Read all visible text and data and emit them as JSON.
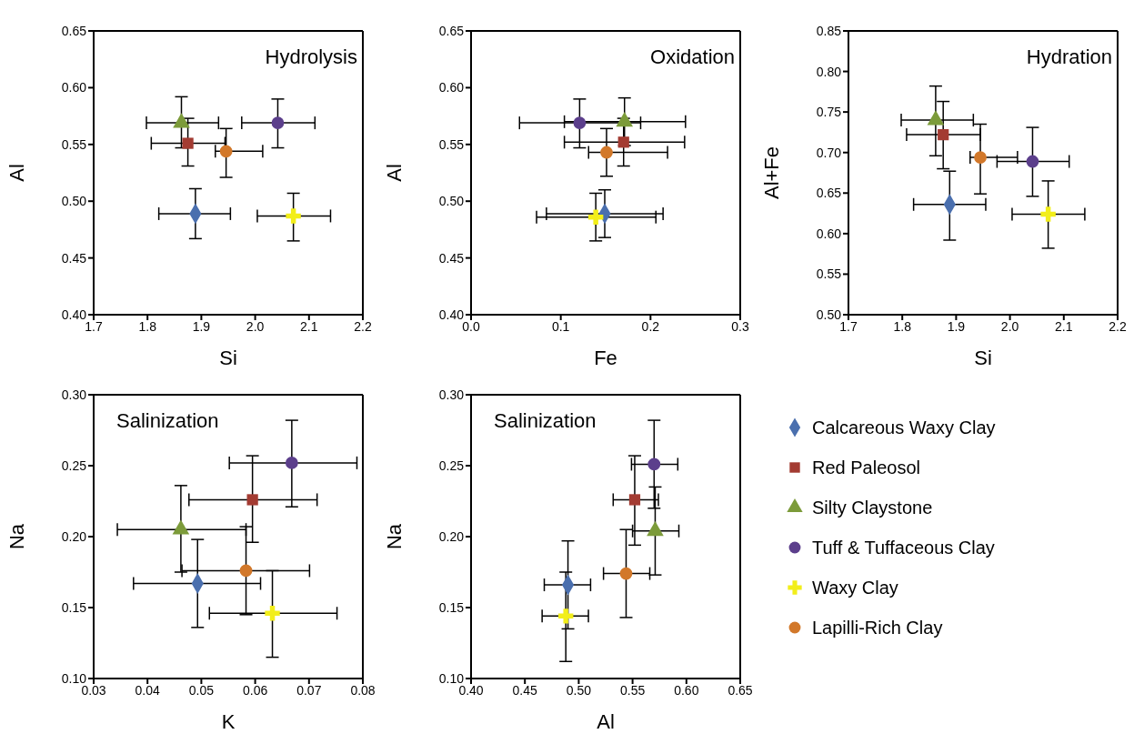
{
  "chart_data": [
    {
      "type": "scatter",
      "title": "Hydrolysis",
      "xlabel": "Si",
      "ylabel": "Al",
      "xlim": [
        1.7,
        2.2
      ],
      "ylim": [
        0.4,
        0.65
      ],
      "legend": false,
      "xticks": [
        {
          "value": 1.7,
          "label": "1.7"
        },
        {
          "value": 1.8,
          "label": "1.8"
        },
        {
          "value": 1.9,
          "label": "1.9"
        },
        {
          "value": 2.0,
          "label": "2.0"
        },
        {
          "value": 2.1,
          "label": "2.1"
        },
        {
          "value": 2.2,
          "label": "2.2"
        }
      ],
      "yticks": [
        {
          "value": 0.4,
          "label": "0.40"
        },
        {
          "value": 0.45,
          "label": "0.45"
        },
        {
          "value": 0.5,
          "label": "0.50"
        },
        {
          "value": 0.55,
          "label": "0.55"
        },
        {
          "value": 0.6,
          "label": "0.60"
        },
        {
          "value": 0.65,
          "label": "0.65"
        }
      ],
      "series": [
        {
          "color": "#4a6fae",
          "marker": "diamond",
          "x": [
            1.889
          ],
          "values": [
            0.489
          ],
          "xerrors": [
            [
              1.821,
              1.954
            ]
          ],
          "errors": [
            [
              0.467,
              0.511
            ]
          ]
        },
        {
          "color": "#a33b32",
          "marker": "square",
          "x": [
            1.875
          ],
          "values": [
            0.551
          ],
          "xerrors": [
            [
              1.807,
              1.944
            ]
          ],
          "errors": [
            [
              0.531,
              0.573
            ]
          ]
        },
        {
          "color": "#7c9b3a",
          "marker": "triangle",
          "x": [
            1.863
          ],
          "values": [
            0.569
          ],
          "xerrors": [
            [
              1.798,
              1.932
            ]
          ],
          "errors": [
            [
              0.547,
              0.592
            ]
          ]
        },
        {
          "color": "#5c3f8c",
          "marker": "circle",
          "x": [
            2.042
          ],
          "values": [
            0.569
          ],
          "xerrors": [
            [
              1.975,
              2.111
            ]
          ],
          "errors": [
            [
              0.547,
              0.59
            ]
          ]
        },
        {
          "color": "#f2ee1a",
          "marker": "cross",
          "x": [
            2.071
          ],
          "values": [
            0.487
          ],
          "xerrors": [
            [
              2.004,
              2.14
            ]
          ],
          "errors": [
            [
              0.465,
              0.507
            ]
          ]
        },
        {
          "color": "#d2782a",
          "marker": "circle",
          "x": [
            1.946
          ],
          "values": [
            0.544
          ],
          "xerrors": [
            [
              1.926,
              2.014
            ]
          ],
          "errors": [
            [
              0.521,
              0.564
            ]
          ]
        }
      ]
    },
    {
      "type": "scatter",
      "title": "Oxidation",
      "xlabel": "Fe",
      "ylabel": "Al",
      "xlim": [
        0,
        0.3
      ],
      "ylim": [
        0.4,
        0.65
      ],
      "legend": false,
      "xticks": [
        {
          "value": 0,
          "label": "0.0"
        },
        {
          "value": 0.1,
          "label": "0.1"
        },
        {
          "value": 0.2,
          "label": "0.2"
        },
        {
          "value": 0.3,
          "label": "0.3"
        }
      ],
      "yticks": [
        {
          "value": 0.4,
          "label": "0.40"
        },
        {
          "value": 0.45,
          "label": "0.45"
        },
        {
          "value": 0.5,
          "label": "0.50"
        },
        {
          "value": 0.55,
          "label": "0.55"
        },
        {
          "value": 0.6,
          "label": "0.60"
        },
        {
          "value": 0.65,
          "label": "0.65"
        }
      ],
      "series": [
        {
          "color": "#4a6fae",
          "marker": "diamond",
          "x": [
            0.149
          ],
          "values": [
            0.489
          ],
          "xerrors": [
            [
              0.084,
              0.214
            ]
          ],
          "errors": [
            [
              0.468,
              0.51
            ]
          ]
        },
        {
          "color": "#a33b32",
          "marker": "square",
          "x": [
            0.17
          ],
          "values": [
            0.552
          ],
          "xerrors": [
            [
              0.104,
              0.238
            ]
          ],
          "errors": [
            [
              0.531,
              0.573
            ]
          ]
        },
        {
          "color": "#7c9b3a",
          "marker": "triangle",
          "x": [
            0.171
          ],
          "values": [
            0.57
          ],
          "xerrors": [
            [
              0.104,
              0.239
            ]
          ],
          "errors": [
            [
              0.549,
              0.591
            ]
          ]
        },
        {
          "color": "#5c3f8c",
          "marker": "circle",
          "x": [
            0.121
          ],
          "values": [
            0.569
          ],
          "xerrors": [
            [
              0.054,
              0.189
            ]
          ],
          "errors": [
            [
              0.547,
              0.59
            ]
          ]
        },
        {
          "color": "#f2ee1a",
          "marker": "cross",
          "x": [
            0.139
          ],
          "values": [
            0.486
          ],
          "xerrors": [
            [
              0.073,
              0.206
            ]
          ],
          "errors": [
            [
              0.465,
              0.507
            ]
          ]
        },
        {
          "color": "#d2782a",
          "marker": "circle",
          "x": [
            0.151
          ],
          "values": [
            0.543
          ],
          "xerrors": [
            [
              0.131,
              0.219
            ]
          ],
          "errors": [
            [
              0.522,
              0.564
            ]
          ]
        }
      ]
    },
    {
      "type": "scatter",
      "title": "Hydration",
      "xlabel": "Si",
      "ylabel": "Al+Fe",
      "xlim": [
        1.7,
        2.2
      ],
      "ylim": [
        0.5,
        0.85
      ],
      "legend": false,
      "xticks": [
        {
          "value": 1.7,
          "label": "1.7"
        },
        {
          "value": 1.8,
          "label": "1.8"
        },
        {
          "value": 1.9,
          "label": "1.9"
        },
        {
          "value": 2.0,
          "label": "2.0"
        },
        {
          "value": 2.1,
          "label": "2.1"
        },
        {
          "value": 2.2,
          "label": "2.2"
        }
      ],
      "yticks": [
        {
          "value": 0.5,
          "label": "0.50"
        },
        {
          "value": 0.55,
          "label": "0.55"
        },
        {
          "value": 0.6,
          "label": "0.60"
        },
        {
          "value": 0.65,
          "label": "0.65"
        },
        {
          "value": 0.7,
          "label": "0.70"
        },
        {
          "value": 0.75,
          "label": "0.75"
        },
        {
          "value": 0.8,
          "label": "0.80"
        },
        {
          "value": 0.85,
          "label": "0.85"
        }
      ],
      "series": [
        {
          "color": "#4a6fae",
          "marker": "diamond",
          "x": [
            1.888
          ],
          "values": [
            0.636
          ],
          "xerrors": [
            [
              1.821,
              1.955
            ]
          ],
          "errors": [
            [
              0.592,
              0.677
            ]
          ]
        },
        {
          "color": "#a33b32",
          "marker": "square",
          "x": [
            1.876
          ],
          "values": [
            0.722
          ],
          "xerrors": [
            [
              1.808,
              1.945
            ]
          ],
          "errors": [
            [
              0.68,
              0.763
            ]
          ]
        },
        {
          "color": "#7c9b3a",
          "marker": "triangle",
          "x": [
            1.862
          ],
          "values": [
            0.74
          ],
          "xerrors": [
            [
              1.798,
              1.932
            ]
          ],
          "errors": [
            [
              0.696,
              0.782
            ]
          ]
        },
        {
          "color": "#5c3f8c",
          "marker": "circle",
          "x": [
            2.042
          ],
          "values": [
            0.689
          ],
          "xerrors": [
            [
              1.976,
              2.11
            ]
          ],
          "errors": [
            [
              0.646,
              0.731
            ]
          ]
        },
        {
          "color": "#f2ee1a",
          "marker": "cross",
          "x": [
            2.071
          ],
          "values": [
            0.624
          ],
          "xerrors": [
            [
              2.004,
              2.139
            ]
          ],
          "errors": [
            [
              0.582,
              0.665
            ]
          ]
        },
        {
          "color": "#d2782a",
          "marker": "circle",
          "x": [
            1.945
          ],
          "values": [
            0.694
          ],
          "xerrors": [
            [
              1.926,
              2.014
            ]
          ],
          "errors": [
            [
              0.649,
              0.735
            ]
          ]
        }
      ]
    },
    {
      "type": "scatter",
      "title": "Salinization",
      "xlabel": "K",
      "ylabel": "Na",
      "xlim": [
        0.03,
        0.08
      ],
      "ylim": [
        0.1,
        0.3
      ],
      "legend": false,
      "xticks": [
        {
          "value": 0.03,
          "label": "0.03"
        },
        {
          "value": 0.04,
          "label": "0.04"
        },
        {
          "value": 0.05,
          "label": "0.05"
        },
        {
          "value": 0.06,
          "label": "0.06"
        },
        {
          "value": 0.07,
          "label": "0.07"
        },
        {
          "value": 0.08,
          "label": "0.08"
        }
      ],
      "yticks": [
        {
          "value": 0.1,
          "label": "0.10"
        },
        {
          "value": 0.15,
          "label": "0.15"
        },
        {
          "value": 0.2,
          "label": "0.20"
        },
        {
          "value": 0.25,
          "label": "0.25"
        },
        {
          "value": 0.3,
          "label": "0.30"
        }
      ],
      "series": [
        {
          "color": "#4a6fae",
          "marker": "diamond",
          "x": [
            0.0493
          ],
          "values": [
            0.167
          ],
          "xerrors": [
            [
              0.0374,
              0.061
            ]
          ],
          "errors": [
            [
              0.136,
              0.198
            ]
          ]
        },
        {
          "color": "#a33b32",
          "marker": "square",
          "x": [
            0.0595
          ],
          "values": [
            0.226
          ],
          "xerrors": [
            [
              0.0477,
              0.0715
            ]
          ],
          "errors": [
            [
              0.196,
              0.257
            ]
          ]
        },
        {
          "color": "#7c9b3a",
          "marker": "triangle",
          "x": [
            0.0462
          ],
          "values": [
            0.205
          ],
          "xerrors": [
            [
              0.0344,
              0.0583
            ]
          ],
          "errors": [
            [
              0.175,
              0.236
            ]
          ]
        },
        {
          "color": "#5c3f8c",
          "marker": "circle",
          "x": [
            0.0668
          ],
          "values": [
            0.252
          ],
          "xerrors": [
            [
              0.0552,
              0.0789
            ]
          ],
          "errors": [
            [
              0.221,
              0.282
            ]
          ]
        },
        {
          "color": "#f2ee1a",
          "marker": "cross",
          "x": [
            0.0632
          ],
          "values": [
            0.146
          ],
          "xerrors": [
            [
              0.0515,
              0.0752
            ]
          ],
          "errors": [
            [
              0.115,
              0.176
            ]
          ]
        },
        {
          "color": "#d2782a",
          "marker": "circle",
          "x": [
            0.0583
          ],
          "values": [
            0.176
          ],
          "xerrors": [
            [
              0.0464,
              0.0701
            ]
          ],
          "errors": [
            [
              0.145,
              0.207
            ]
          ]
        }
      ]
    },
    {
      "type": "scatter",
      "title": "Salinization",
      "xlabel": "Al",
      "ylabel": "Na",
      "xlim": [
        0.4,
        0.65
      ],
      "ylim": [
        0.1,
        0.3
      ],
      "legend": "right",
      "xticks": [
        {
          "value": 0.4,
          "label": "0.40"
        },
        {
          "value": 0.45,
          "label": "0.45"
        },
        {
          "value": 0.5,
          "label": "0.50"
        },
        {
          "value": 0.55,
          "label": "0.55"
        },
        {
          "value": 0.6,
          "label": "0.60"
        },
        {
          "value": 0.65,
          "label": "0.65"
        }
      ],
      "yticks": [
        {
          "value": 0.1,
          "label": "0.10"
        },
        {
          "value": 0.15,
          "label": "0.15"
        },
        {
          "value": 0.2,
          "label": "0.20"
        },
        {
          "value": 0.25,
          "label": "0.25"
        },
        {
          "value": 0.3,
          "label": "0.30"
        }
      ],
      "series": [
        {
          "name": "Calcareous Waxy Clay",
          "color": "#4a6fae",
          "marker": "diamond",
          "x": [
            0.49
          ],
          "values": [
            0.166
          ],
          "xerrors": [
            [
              0.468,
              0.511
            ]
          ],
          "errors": [
            [
              0.135,
              0.197
            ]
          ]
        },
        {
          "name": "Red Paleosol",
          "color": "#a33b32",
          "marker": "square",
          "x": [
            0.552
          ],
          "values": [
            0.226
          ],
          "xerrors": [
            [
              0.532,
              0.574
            ]
          ],
          "errors": [
            [
              0.194,
              0.257
            ]
          ]
        },
        {
          "name": "Silty Claystone",
          "color": "#7c9b3a",
          "marker": "triangle",
          "x": [
            0.571
          ],
          "values": [
            0.204
          ],
          "xerrors": [
            [
              0.55,
              0.593
            ]
          ],
          "errors": [
            [
              0.173,
              0.235
            ]
          ]
        },
        {
          "name": "Tuff & Tuffaceous Clay",
          "color": "#5c3f8c",
          "marker": "circle",
          "x": [
            0.57
          ],
          "values": [
            0.251
          ],
          "xerrors": [
            [
              0.549,
              0.592
            ]
          ],
          "errors": [
            [
              0.22,
              0.282
            ]
          ]
        },
        {
          "name": "Waxy Clay",
          "color": "#f2ee1a",
          "marker": "cross",
          "x": [
            0.488
          ],
          "values": [
            0.144
          ],
          "xerrors": [
            [
              0.466,
              0.509
            ]
          ],
          "errors": [
            [
              0.112,
              0.175
            ]
          ]
        },
        {
          "name": "Lapilli-Rich Clay",
          "color": "#d2782a",
          "marker": "circle",
          "x": [
            0.544
          ],
          "values": [
            0.174
          ],
          "xerrors": [
            [
              0.523,
              0.566
            ]
          ],
          "errors": [
            [
              0.143,
              0.205
            ]
          ]
        }
      ]
    }
  ]
}
